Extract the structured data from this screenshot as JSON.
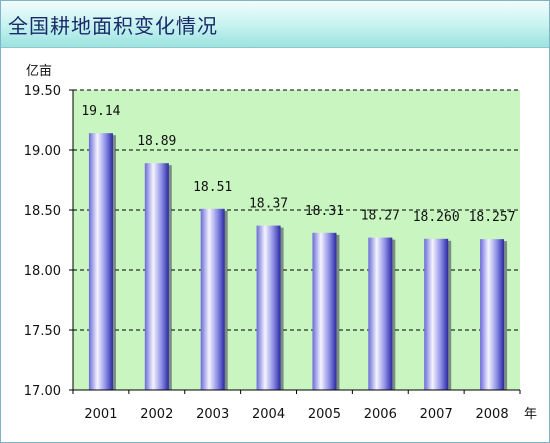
{
  "header": {
    "title": "全国耕地面积变化情况"
  },
  "chart_data": {
    "type": "bar",
    "title": "全国耕地面积变化情况",
    "ylabel": "亿亩",
    "xlabel": "年",
    "ylim": [
      17.0,
      19.5
    ],
    "yticks": [
      "19.50",
      "19.00",
      "18.50",
      "18.00",
      "17.50",
      "17.00"
    ],
    "ytick_values": [
      19.5,
      19.0,
      18.5,
      18.0,
      17.5,
      17.0
    ],
    "categories": [
      "2001",
      "2002",
      "2003",
      "2004",
      "2005",
      "2006",
      "2007",
      "2008"
    ],
    "values": [
      19.14,
      18.89,
      18.51,
      18.37,
      18.31,
      18.27,
      18.26,
      18.257
    ],
    "data_labels": [
      "19.14",
      "18.89",
      "18.51",
      "18.37",
      "18.31",
      "18.27",
      "18.260",
      "18.257"
    ],
    "grid": true,
    "colors": {
      "plot_bg": "#c8f5c0",
      "bar_light": "#f4f4ff",
      "bar_mid": "#9a9ae8",
      "bar_dark": "#2a2aa0",
      "grid": "#000000"
    }
  }
}
